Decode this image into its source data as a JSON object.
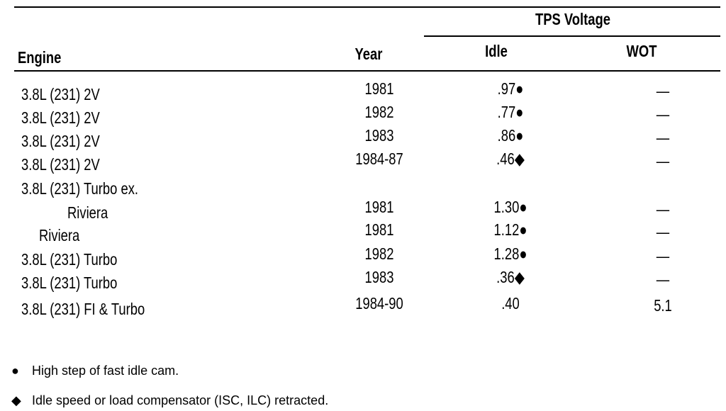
{
  "table": {
    "group_header": "TPS Voltage",
    "columns": [
      "Engine",
      "Year",
      "Idle",
      "WOT"
    ],
    "rows": [
      [
        "3.8L (231) 2V",
        "1981",
        ".97●",
        "—"
      ],
      [
        "3.8L (231) 2V",
        "1982",
        ".77●",
        "—"
      ],
      [
        "3.8L (231) 2V",
        "1983",
        ".86●",
        "—"
      ],
      [
        "3.8L (231) 2V",
        "1984-87",
        ".46◆",
        "—"
      ],
      [
        "3.8L (231) Turbo ex."
      ],
      [
        "Riviera",
        "1981",
        "1.30●",
        "—"
      ],
      [
        "Riviera",
        "1981",
        "1.12●",
        "—"
      ],
      [
        "3.8L (231) Turbo",
        "1982",
        "1.28●",
        "—"
      ],
      [
        "3.8L (231) Turbo",
        "1983",
        ".36◆",
        "—"
      ],
      [
        "3.8L (231) FI & Turbo",
        "1984-90",
        ".40",
        "5.1"
      ]
    ]
  },
  "footnotes": [
    {
      "symbol": "●",
      "text": "High step of fast idle cam."
    },
    {
      "symbol": "◆",
      "text": "Idle speed or load compensator (ISC, ILC) retracted."
    }
  ]
}
